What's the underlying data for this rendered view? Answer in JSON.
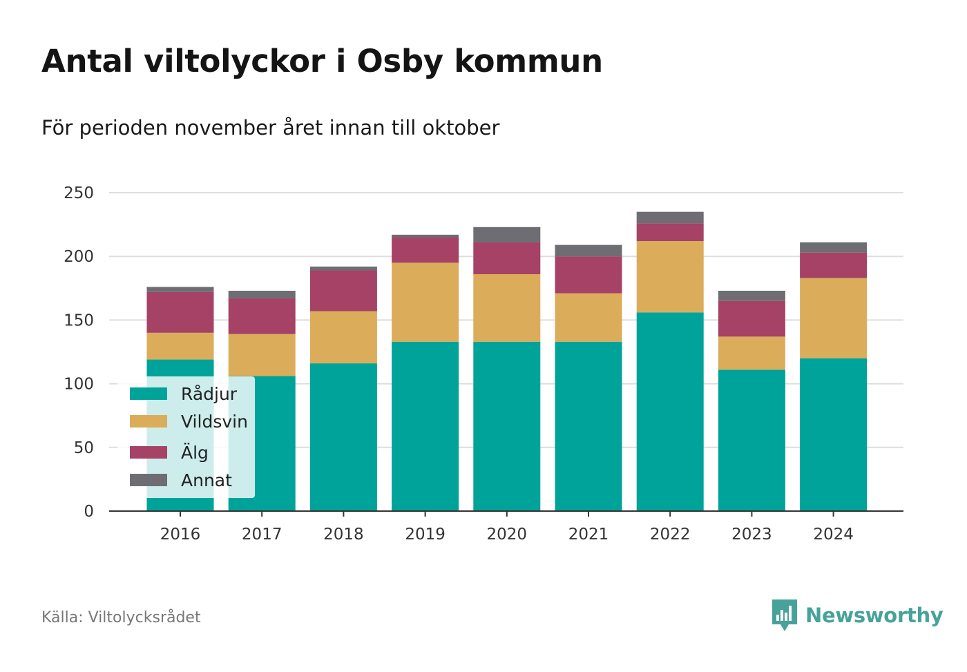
{
  "title": "Antal viltolyckor i Osby kommun",
  "subtitle": "För perioden november året innan till oktober",
  "source": "Källa: Viltolycksrådet",
  "brand": {
    "name": "Newsworthy",
    "icon": "newsworthy-logo-icon",
    "color": "#47a29a"
  },
  "chart_data": {
    "type": "bar",
    "stacked": true,
    "categories": [
      "2016",
      "2017",
      "2018",
      "2019",
      "2020",
      "2021",
      "2022",
      "2023",
      "2024"
    ],
    "series": [
      {
        "name": "Rådjur",
        "color": "#00a39a",
        "values": [
          119,
          106,
          116,
          133,
          133,
          133,
          156,
          111,
          120
        ]
      },
      {
        "name": "Vildsvin",
        "color": "#dbac5a",
        "values": [
          21,
          33,
          41,
          62,
          53,
          38,
          56,
          26,
          63
        ]
      },
      {
        "name": "Älg",
        "color": "#a54266",
        "values": [
          32,
          28,
          32,
          20,
          25,
          29,
          14,
          28,
          20
        ]
      },
      {
        "name": "Annat",
        "color": "#6d6d73",
        "values": [
          4,
          6,
          3,
          2,
          12,
          9,
          9,
          8,
          8
        ]
      }
    ],
    "ylim": [
      0,
      250
    ],
    "yticks": [
      "0",
      "50",
      "100",
      "150",
      "200",
      "250"
    ],
    "grid": true,
    "legend": "bottom-left",
    "xlabel": "",
    "ylabel": ""
  }
}
